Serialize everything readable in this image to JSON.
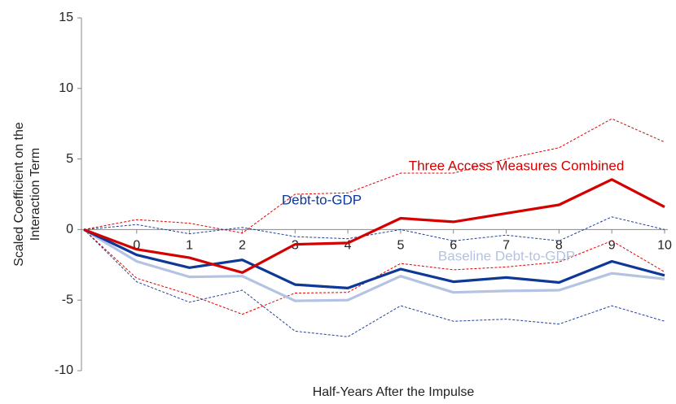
{
  "chart_data": {
    "type": "line",
    "ylabel": [
      "Scaled Coefficient on the",
      "Interaction Term"
    ],
    "xlabel": "Half-Years After the Impulse",
    "x": [
      -1,
      0,
      1,
      2,
      3,
      4,
      5,
      6,
      7,
      8,
      9,
      10
    ],
    "xlim": [
      -1,
      10
    ],
    "xticks": [
      0,
      1,
      2,
      3,
      4,
      5,
      6,
      7,
      8,
      9,
      10
    ],
    "ylim": [
      -10,
      15
    ],
    "yticks": [
      -10,
      -5,
      0,
      5,
      10,
      15
    ],
    "series": [
      {
        "color": "#e00000",
        "style": "dashed",
        "values": [
          0,
          0.7,
          0.45,
          -0.25,
          2.5,
          2.6,
          4.0,
          4.0,
          5.0,
          5.8,
          7.85,
          6.2
        ]
      },
      {
        "color": "#e00000",
        "style": "dashed",
        "values": [
          0,
          -3.45,
          -4.6,
          -6.0,
          -4.5,
          -4.45,
          -2.4,
          -2.85,
          -2.65,
          -2.3,
          -0.8,
          -3.0
        ]
      },
      {
        "color": "#1f3f99",
        "style": "dashed",
        "values": [
          0,
          0.35,
          -0.3,
          0.15,
          -0.5,
          -0.65,
          0.0,
          -0.8,
          -0.4,
          -0.8,
          0.9,
          0
        ]
      },
      {
        "color": "#1f3f99",
        "style": "dashed",
        "values": [
          0,
          -3.7,
          -5.15,
          -4.3,
          -7.2,
          -7.6,
          -5.4,
          -6.5,
          -6.35,
          -6.7,
          -5.4,
          -6.5
        ]
      },
      {
        "name": "Baseline Debt-to-GDP",
        "color": "#b4c3e2",
        "style": "solid",
        "values": [
          0,
          -2.25,
          -3.35,
          -3.3,
          -5.05,
          -5.0,
          -3.3,
          -4.45,
          -4.35,
          -4.3,
          -3.1,
          -3.5
        ]
      },
      {
        "name": "Debt-to-GDP",
        "color": "#0e3896",
        "style": "solid",
        "values": [
          0,
          -1.8,
          -2.7,
          -2.15,
          -3.9,
          -4.15,
          -2.8,
          -3.7,
          -3.4,
          -3.75,
          -2.25,
          -3.25
        ]
      },
      {
        "name": "Three Access Measures Combined",
        "color": "#d40000",
        "style": "solid",
        "values": [
          0,
          -1.4,
          -2.0,
          -3.05,
          -1.05,
          -0.95,
          0.8,
          0.55,
          1.15,
          1.75,
          3.55,
          1.6
        ]
      }
    ]
  }
}
